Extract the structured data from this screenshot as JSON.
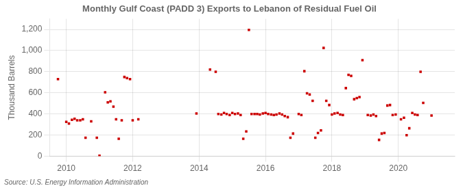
{
  "chart_data": {
    "type": "scatter",
    "title": "Monthly Gulf Coast (PADD 3) Exports to Lebanon of Residual Fuel Oil",
    "ylabel": "Thousand Barrels",
    "annotation": "Source: U.S. Energy Information Administration",
    "color": "#cc0000",
    "marker": "square",
    "grid": true,
    "xlim": [
      2009.5,
      2021.7
    ],
    "xticks": [
      2010,
      2012,
      2014,
      2016,
      2018,
      2020
    ],
    "ylim": [
      0,
      1300
    ],
    "yticks": [
      0,
      200,
      400,
      600,
      800,
      {
        "value": 1000,
        "label": "1,000"
      },
      {
        "value": 1200,
        "label": "1,200"
      }
    ],
    "x": [
      2009.75,
      2010.0,
      2010.08,
      2010.17,
      2010.25,
      2010.33,
      2010.42,
      2010.5,
      2010.58,
      2010.75,
      2010.92,
      2011.0,
      2011.17,
      2011.25,
      2011.33,
      2011.42,
      2011.5,
      2011.58,
      2011.67,
      2011.75,
      2011.83,
      2011.92,
      2012.0,
      2012.17,
      2013.92,
      2014.33,
      2014.5,
      2014.58,
      2014.67,
      2014.75,
      2014.83,
      2014.92,
      2015.0,
      2015.08,
      2015.17,
      2015.25,
      2015.33,
      2015.42,
      2015.5,
      2015.58,
      2015.67,
      2015.75,
      2015.83,
      2015.92,
      2016.0,
      2016.08,
      2016.17,
      2016.25,
      2016.33,
      2016.42,
      2016.5,
      2016.58,
      2016.67,
      2016.75,
      2016.83,
      2017.0,
      2017.08,
      2017.17,
      2017.25,
      2017.33,
      2017.42,
      2017.5,
      2017.58,
      2017.67,
      2017.75,
      2017.83,
      2017.92,
      2018.0,
      2018.08,
      2018.17,
      2018.25,
      2018.33,
      2018.42,
      2018.5,
      2018.58,
      2018.67,
      2018.75,
      2018.83,
      2018.92,
      2019.08,
      2019.17,
      2019.25,
      2019.33,
      2019.42,
      2019.5,
      2019.58,
      2019.67,
      2019.75,
      2019.83,
      2019.92,
      2020.08,
      2020.17,
      2020.25,
      2020.33,
      2020.42,
      2020.5,
      2020.58,
      2020.67,
      2020.75,
      2021.0
    ],
    "values": [
      730,
      325,
      310,
      345,
      355,
      340,
      340,
      350,
      175,
      330,
      175,
      5,
      605,
      510,
      520,
      470,
      350,
      165,
      340,
      750,
      740,
      730,
      340,
      350,
      405,
      820,
      800,
      400,
      395,
      410,
      400,
      390,
      410,
      400,
      405,
      390,
      165,
      235,
      1195,
      400,
      400,
      400,
      395,
      405,
      410,
      400,
      395,
      390,
      395,
      405,
      395,
      380,
      370,
      175,
      215,
      400,
      390,
      805,
      595,
      585,
      525,
      175,
      220,
      245,
      1025,
      525,
      485,
      395,
      405,
      410,
      395,
      390,
      645,
      770,
      760,
      540,
      550,
      560,
      910,
      390,
      385,
      395,
      380,
      155,
      215,
      220,
      480,
      485,
      390,
      395,
      350,
      365,
      200,
      265,
      410,
      395,
      390,
      800,
      505,
      385
    ]
  }
}
